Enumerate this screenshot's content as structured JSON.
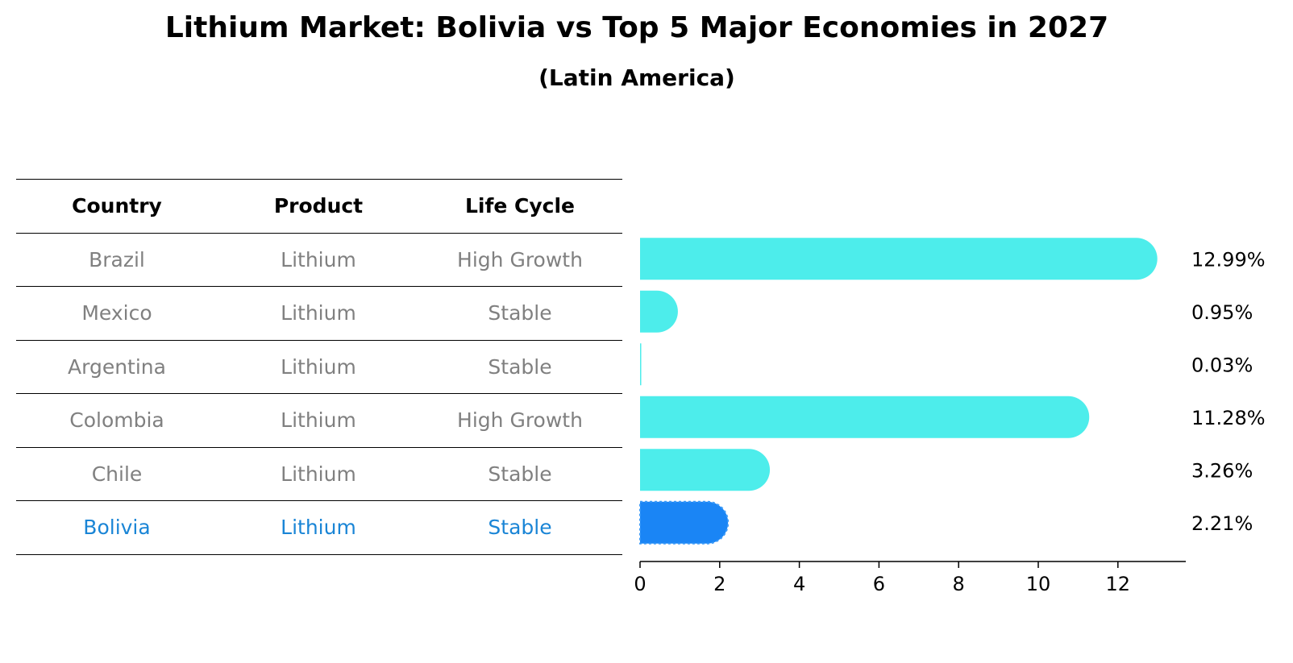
{
  "title": "Lithium Market: Bolivia vs Top 5 Major Economies in 2027",
  "subtitle": "(Latin America)",
  "table": {
    "headers": [
      "Country",
      "Product",
      "Life Cycle"
    ],
    "rows": [
      {
        "country": "Brazil",
        "product": "Lithium",
        "life_cycle": "High Growth"
      },
      {
        "country": "Mexico",
        "product": "Lithium",
        "life_cycle": "Stable"
      },
      {
        "country": "Argentina",
        "product": "Lithium",
        "life_cycle": "Stable"
      },
      {
        "country": "Colombia",
        "product": "Lithium",
        "life_cycle": "High Growth"
      },
      {
        "country": "Chile",
        "product": "Lithium",
        "life_cycle": "Stable"
      },
      {
        "country": "Bolivia",
        "product": "Lithium",
        "life_cycle": "Stable"
      }
    ]
  },
  "colors": {
    "bar": "#4DEDEB",
    "highlight_bar": "#1A85F5",
    "muted_text": "#808080",
    "highlight_text": "#1A85D6"
  },
  "chart_data": {
    "type": "bar",
    "orientation": "horizontal",
    "categories": [
      "Brazil",
      "Mexico",
      "Argentina",
      "Colombia",
      "Chile",
      "Bolivia"
    ],
    "values": [
      12.99,
      0.95,
      0.03,
      11.28,
      3.26,
      2.21
    ],
    "value_labels": [
      "12.99%",
      "0.95%",
      "0.03%",
      "11.28%",
      "3.26%",
      "2.21%"
    ],
    "highlight": "Bolivia",
    "xlim": [
      0,
      13.6
    ],
    "xticks": [
      0,
      2,
      4,
      6,
      8,
      10,
      12
    ],
    "xtick_labels": [
      "0",
      "2",
      "4",
      "6",
      "8",
      "10",
      "12"
    ],
    "grid": false
  }
}
